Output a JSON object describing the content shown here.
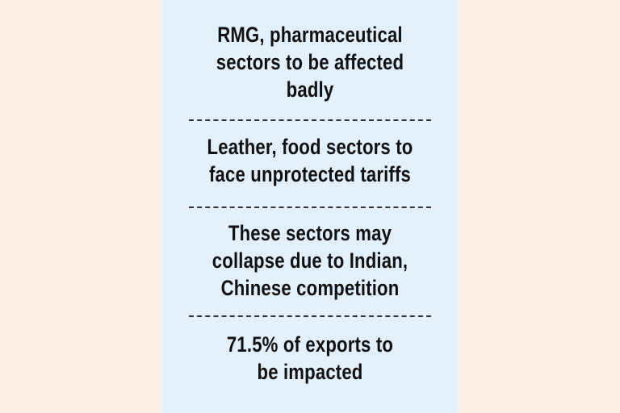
{
  "panel": {
    "items": [
      {
        "lines": [
          "RMG, pharmaceutical",
          "sectors to be affected",
          "badly"
        ]
      },
      {
        "lines": [
          "Leather, food sectors to",
          "face unprotected tariffs"
        ]
      },
      {
        "lines": [
          "These sectors may",
          "collapse due to Indian,",
          "Chinese competition"
        ]
      },
      {
        "lines": [
          "71.5% of exports to",
          "be impacted"
        ]
      }
    ]
  },
  "colors": {
    "page_background": "#fcefe6",
    "panel_background": "#e2f0fb",
    "text": "#111111",
    "divider": "#333333"
  }
}
